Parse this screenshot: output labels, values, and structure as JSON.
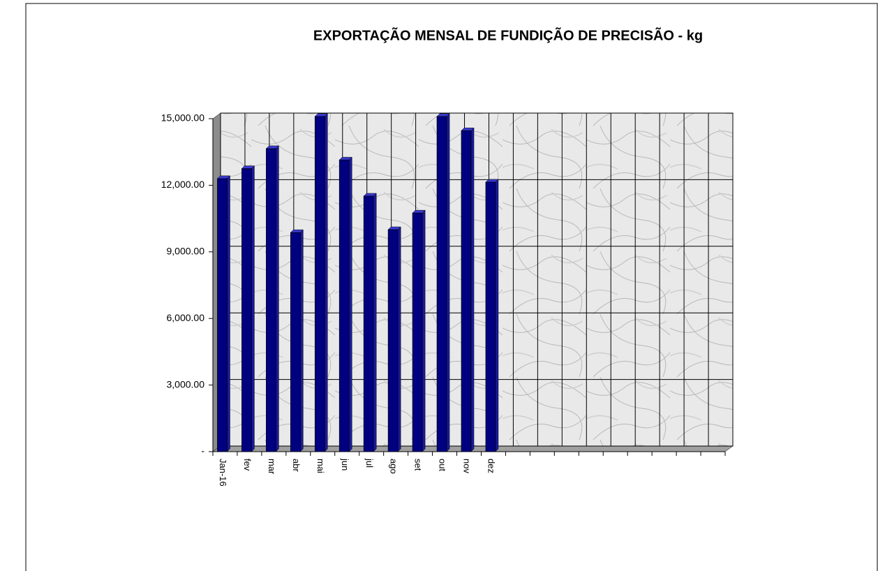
{
  "chart_data": {
    "type": "bar",
    "title": "EXPORTAÇÃO MENSAL DE FUNDIÇÃO DE PRECISÃO - kg",
    "categories": [
      "Jan-16",
      "fev",
      "mar",
      "abr",
      "mai",
      "jun",
      "jul",
      "ago",
      "set",
      "out",
      "nov",
      "dez",
      null,
      null,
      null,
      null,
      null,
      null,
      null,
      null,
      null
    ],
    "values": [
      12300,
      12750,
      13650,
      9870,
      15100,
      13140,
      11510,
      10000,
      10750,
      15100,
      14460,
      12140,
      null,
      null,
      null,
      null,
      null,
      null,
      null,
      null,
      null
    ],
    "color": "#000080",
    "ylim": [
      0,
      15000
    ],
    "yticks": [
      {
        "value": 0,
        "label": "-"
      },
      {
        "value": 3000,
        "label": "3,000.00"
      },
      {
        "value": 6000,
        "label": "6,000.00"
      },
      {
        "value": 9000,
        "label": "9,000.00"
      },
      {
        "value": 12000,
        "label": "12,000.00"
      },
      {
        "value": 15000,
        "label": "15,000.00"
      }
    ],
    "grid": true
  }
}
